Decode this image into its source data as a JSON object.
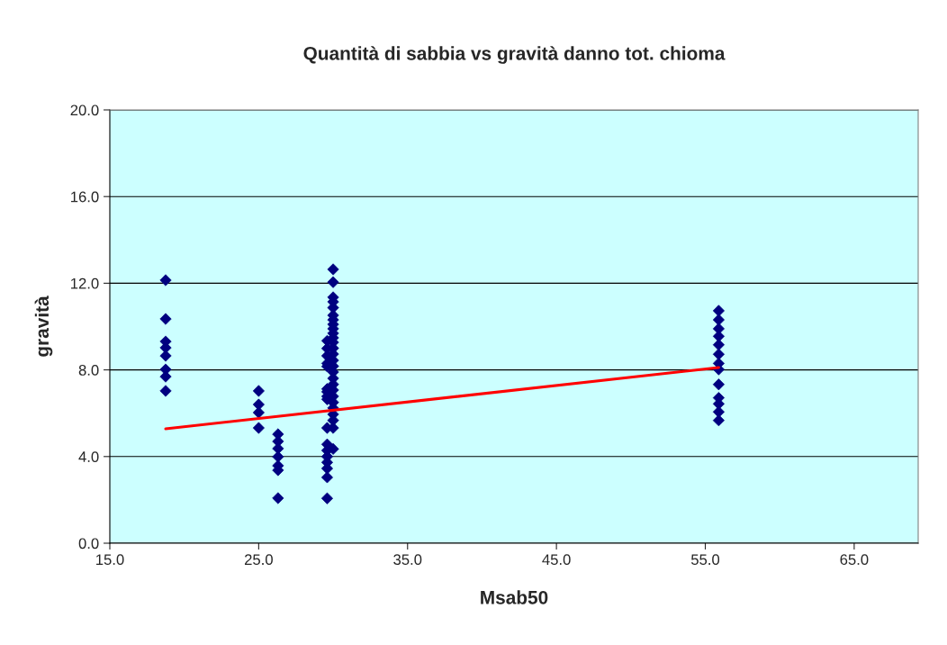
{
  "chart_data": {
    "type": "scatter",
    "title": "Quantità di sabbia vs gravità danno tot. chioma",
    "xlabel": "Msab50",
    "ylabel": "gravità",
    "xlim": [
      15,
      69.3
    ],
    "ylim": [
      0,
      20
    ],
    "xticks": [
      {
        "value": 15,
        "label": "15.0"
      },
      {
        "value": 25,
        "label": "25.0"
      },
      {
        "value": 35,
        "label": "35.0"
      },
      {
        "value": 45,
        "label": "45.0"
      },
      {
        "value": 55,
        "label": "55.0"
      },
      {
        "value": 65,
        "label": "65.0"
      }
    ],
    "yticks": [
      {
        "value": 0,
        "label": "0.0"
      },
      {
        "value": 4,
        "label": "4.0"
      },
      {
        "value": 8,
        "label": "8.0"
      },
      {
        "value": 12,
        "label": "12.0"
      },
      {
        "value": 16,
        "label": "16.0"
      },
      {
        "value": 20,
        "label": "20.0"
      }
    ],
    "grid": "y",
    "marker": "diamond",
    "series": [
      {
        "color": "#000080",
        "x": [
          18.75,
          18.75,
          18.75,
          18.75,
          18.75,
          18.75,
          18.75,
          18.75,
          25.0,
          25.0,
          25.0,
          25.0,
          26.3,
          26.3,
          26.3,
          26.3,
          26.3,
          26.3,
          26.3,
          30.0,
          30.0,
          30.0,
          30.0,
          30.0,
          30.0,
          30.0,
          30.0,
          30.0,
          30.0,
          30.0,
          30.0,
          30.0,
          30.0,
          30.0,
          30.0,
          30.0,
          30.0,
          30.0,
          30.0,
          30.0,
          30.0,
          30.0,
          30.0,
          30.0,
          30.0,
          30.0,
          29.6,
          29.6,
          29.6,
          29.6,
          29.6,
          29.6,
          29.6,
          29.6,
          29.6,
          29.6,
          29.6,
          29.6,
          29.6,
          29.6,
          29.6,
          29.6,
          29.6,
          55.9,
          55.9,
          55.9,
          55.9,
          55.9,
          55.9,
          55.9,
          55.9,
          55.9,
          55.9,
          55.9,
          55.9,
          55.9
        ],
        "values": [
          12.14,
          10.35,
          9.31,
          9.02,
          8.65,
          8.02,
          7.69,
          7.03,
          7.03,
          6.4,
          6.03,
          5.32,
          5.03,
          4.7,
          4.37,
          3.99,
          3.58,
          3.37,
          2.08,
          12.64,
          12.05,
          11.35,
          11.14,
          10.87,
          10.52,
          10.31,
          10.1,
          9.9,
          9.69,
          9.48,
          9.27,
          9.0,
          8.73,
          8.44,
          8.17,
          7.9,
          7.61,
          7.33,
          7.07,
          6.78,
          6.5,
          6.24,
          5.95,
          5.67,
          5.32,
          4.35,
          9.34,
          8.99,
          8.65,
          8.3,
          8.16,
          7.12,
          6.99,
          6.78,
          6.64,
          5.32,
          4.56,
          4.28,
          4.0,
          3.73,
          3.45,
          3.04,
          2.07,
          10.73,
          10.31,
          9.9,
          9.55,
          9.16,
          8.72,
          8.3,
          8.02,
          7.33,
          6.71,
          6.43,
          6.06,
          5.67
        ]
      },
      {
        "type": "line",
        "color": "#ff0000",
        "marker": "none",
        "line_style": "solid",
        "x": [
          18.75,
          55.9
        ],
        "values": [
          5.28,
          8.11
        ]
      }
    ]
  }
}
